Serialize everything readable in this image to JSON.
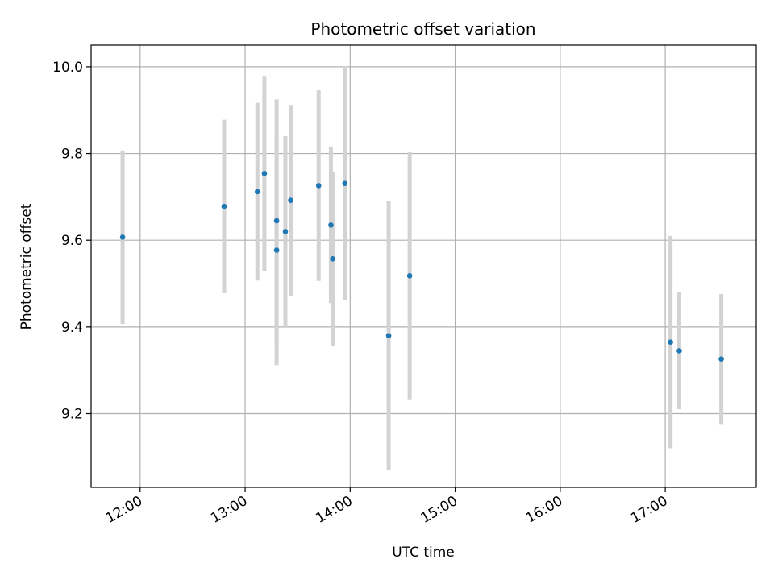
{
  "chart_data": {
    "type": "scatter",
    "title": "Photometric offset variation",
    "xlabel": "UTC time",
    "ylabel": "Photometric offset",
    "x_unit": "hours UTC",
    "xlim": [
      "11:32",
      "17:52"
    ],
    "ylim": [
      9.03,
      10.05
    ],
    "x_ticks": [
      "12:00",
      "13:00",
      "14:00",
      "15:00",
      "16:00",
      "17:00"
    ],
    "y_ticks": [
      9.2,
      9.4,
      9.6,
      9.8,
      10.0
    ],
    "grid": true,
    "point_color": "#1f77b4",
    "errorbar_color": "#d3d3d3",
    "points": [
      {
        "x": "11:50",
        "y": 9.607,
        "err": 0.2
      },
      {
        "x": "12:48",
        "y": 9.678,
        "err": 0.2
      },
      {
        "x": "13:07",
        "y": 9.712,
        "err": 0.205
      },
      {
        "x": "13:11",
        "y": 9.754,
        "err": 0.225
      },
      {
        "x": "13:18",
        "y": 9.645,
        "err": 0.28
      },
      {
        "x": "13:18",
        "y": 9.577,
        "err": 0.265
      },
      {
        "x": "13:23",
        "y": 9.62,
        "err": 0.22
      },
      {
        "x": "13:26",
        "y": 9.692,
        "err": 0.22
      },
      {
        "x": "13:42",
        "y": 9.726,
        "err": 0.22
      },
      {
        "x": "13:49",
        "y": 9.635,
        "err": 0.18
      },
      {
        "x": "13:50",
        "y": 9.557,
        "err": 0.2
      },
      {
        "x": "13:57",
        "y": 9.731,
        "err": 0.27
      },
      {
        "x": "14:22",
        "y": 9.38,
        "err": 0.31
      },
      {
        "x": "14:34",
        "y": 9.518,
        "err": 0.285
      },
      {
        "x": "17:03",
        "y": 9.365,
        "err": 0.245
      },
      {
        "x": "17:08",
        "y": 9.345,
        "err": 0.135
      },
      {
        "x": "17:32",
        "y": 9.326,
        "err": 0.15
      }
    ]
  }
}
